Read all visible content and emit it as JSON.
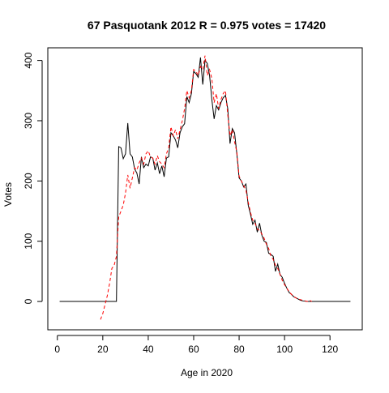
{
  "chart_data": {
    "type": "line",
    "title": "67 Pasquotank 2012 R = 0.975 votes = 17420",
    "xlabel": "Age in 2020",
    "ylabel": "Votes",
    "xlim": [
      -4.2,
      134.2
    ],
    "ylim": [
      -47,
      421
    ],
    "x_ticks": [
      0,
      20,
      40,
      60,
      80,
      100,
      120
    ],
    "y_ticks": [
      0,
      100,
      200,
      300,
      400
    ],
    "grid": false,
    "legend": "none",
    "series": [
      {
        "color": "#000000",
        "style": "solid",
        "points": [
          [
            1,
            0
          ],
          [
            5,
            0
          ],
          [
            10,
            0
          ],
          [
            15,
            0
          ],
          [
            20,
            0
          ],
          [
            24,
            0
          ],
          [
            25,
            0
          ],
          [
            26,
            0
          ],
          [
            27,
            257
          ],
          [
            28,
            255
          ],
          [
            29,
            237
          ],
          [
            30,
            245
          ],
          [
            31,
            296
          ],
          [
            32,
            245
          ],
          [
            33,
            240
          ],
          [
            34,
            220
          ],
          [
            35,
            213
          ],
          [
            36,
            195
          ],
          [
            37,
            240
          ],
          [
            38,
            222
          ],
          [
            39,
            228
          ],
          [
            40,
            225
          ],
          [
            41,
            240
          ],
          [
            42,
            238
          ],
          [
            43,
            218
          ],
          [
            44,
            230
          ],
          [
            45,
            212
          ],
          [
            46,
            225
          ],
          [
            47,
            207
          ],
          [
            48,
            238
          ],
          [
            49,
            240
          ],
          [
            50,
            280
          ],
          [
            51,
            275
          ],
          [
            52,
            268
          ],
          [
            53,
            255
          ],
          [
            54,
            280
          ],
          [
            55,
            290
          ],
          [
            56,
            295
          ],
          [
            57,
            340
          ],
          [
            58,
            330
          ],
          [
            59,
            345
          ],
          [
            60,
            382
          ],
          [
            61,
            378
          ],
          [
            62,
            372
          ],
          [
            63,
            405
          ],
          [
            64,
            360
          ],
          [
            65,
            400
          ],
          [
            66,
            395
          ],
          [
            67,
            375
          ],
          [
            68,
            335
          ],
          [
            69,
            303
          ],
          [
            70,
            325
          ],
          [
            71,
            318
          ],
          [
            72,
            330
          ],
          [
            73,
            338
          ],
          [
            74,
            342
          ],
          [
            75,
            320
          ],
          [
            76,
            262
          ],
          [
            77,
            287
          ],
          [
            78,
            280
          ],
          [
            79,
            245
          ],
          [
            80,
            205
          ],
          [
            81,
            200
          ],
          [
            82,
            190
          ],
          [
            83,
            195
          ],
          [
            84,
            160
          ],
          [
            85,
            145
          ],
          [
            86,
            128
          ],
          [
            87,
            135
          ],
          [
            88,
            115
          ],
          [
            89,
            130
          ],
          [
            90,
            110
          ],
          [
            91,
            100
          ],
          [
            92,
            98
          ],
          [
            93,
            80
          ],
          [
            94,
            78
          ],
          [
            95,
            75
          ],
          [
            96,
            50
          ],
          [
            97,
            62
          ],
          [
            98,
            45
          ],
          [
            99,
            40
          ],
          [
            100,
            30
          ],
          [
            101,
            22
          ],
          [
            102,
            15
          ],
          [
            103,
            12
          ],
          [
            104,
            8
          ],
          [
            105,
            6
          ],
          [
            106,
            4
          ],
          [
            107,
            2
          ],
          [
            108,
            1
          ],
          [
            110,
            0
          ],
          [
            115,
            0
          ],
          [
            120,
            0
          ],
          [
            125,
            0
          ],
          [
            129,
            0
          ]
        ]
      },
      {
        "color": "#ff0000",
        "style": "dashed",
        "points": [
          [
            19,
            -30
          ],
          [
            20,
            -20
          ],
          [
            21,
            -5
          ],
          [
            22,
            10
          ],
          [
            23,
            30
          ],
          [
            24,
            55
          ],
          [
            25,
            60
          ],
          [
            26,
            75
          ],
          [
            27,
            140
          ],
          [
            28,
            150
          ],
          [
            29,
            160
          ],
          [
            30,
            180
          ],
          [
            31,
            210
          ],
          [
            32,
            188
          ],
          [
            33,
            205
          ],
          [
            34,
            222
          ],
          [
            35,
            218
          ],
          [
            36,
            230
          ],
          [
            37,
            238
          ],
          [
            38,
            228
          ],
          [
            39,
            245
          ],
          [
            40,
            250
          ],
          [
            41,
            240
          ],
          [
            42,
            238
          ],
          [
            43,
            228
          ],
          [
            44,
            242
          ],
          [
            45,
            232
          ],
          [
            46,
            228
          ],
          [
            47,
            222
          ],
          [
            48,
            245
          ],
          [
            49,
            255
          ],
          [
            50,
            290
          ],
          [
            51,
            275
          ],
          [
            52,
            285
          ],
          [
            53,
            270
          ],
          [
            54,
            285
          ],
          [
            55,
            300
          ],
          [
            56,
            320
          ],
          [
            57,
            350
          ],
          [
            58,
            338
          ],
          [
            59,
            350
          ],
          [
            60,
            385
          ],
          [
            61,
            382
          ],
          [
            62,
            375
          ],
          [
            63,
            390
          ],
          [
            64,
            385
          ],
          [
            65,
            408
          ],
          [
            66,
            375
          ],
          [
            67,
            385
          ],
          [
            68,
            370
          ],
          [
            69,
            330
          ],
          [
            70,
            345
          ],
          [
            71,
            320
          ],
          [
            72,
            335
          ],
          [
            73,
            345
          ],
          [
            74,
            350
          ],
          [
            75,
            310
          ],
          [
            76,
            275
          ],
          [
            77,
            285
          ],
          [
            78,
            265
          ],
          [
            79,
            248
          ],
          [
            80,
            208
          ],
          [
            81,
            200
          ],
          [
            82,
            192
          ],
          [
            83,
            185
          ],
          [
            84,
            165
          ],
          [
            85,
            148
          ],
          [
            86,
            135
          ],
          [
            87,
            130
          ],
          [
            88,
            120
          ],
          [
            89,
            118
          ],
          [
            90,
            112
          ],
          [
            91,
            105
          ],
          [
            92,
            95
          ],
          [
            93,
            88
          ],
          [
            94,
            75
          ],
          [
            95,
            70
          ],
          [
            96,
            60
          ],
          [
            97,
            55
          ],
          [
            98,
            45
          ],
          [
            99,
            35
          ],
          [
            100,
            28
          ],
          [
            101,
            22
          ],
          [
            102,
            16
          ],
          [
            103,
            12
          ],
          [
            104,
            8
          ],
          [
            105,
            6
          ],
          [
            106,
            4
          ],
          [
            107,
            3
          ],
          [
            108,
            2
          ],
          [
            109,
            1
          ],
          [
            110,
            0
          ],
          [
            111,
            2
          ],
          [
            112,
            0
          ]
        ]
      }
    ]
  }
}
